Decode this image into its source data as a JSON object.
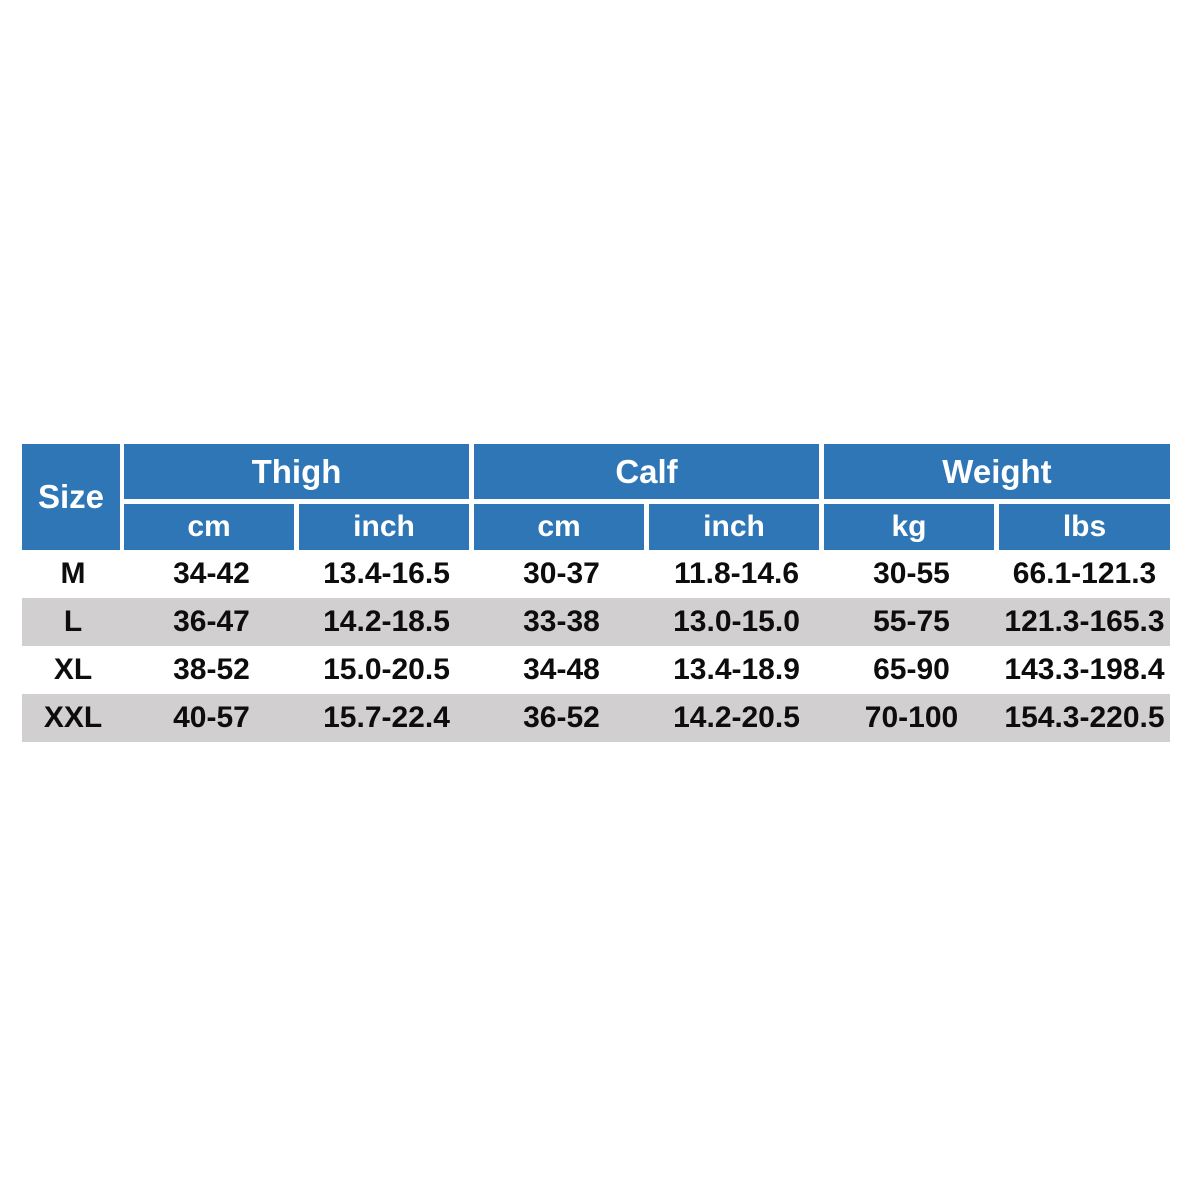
{
  "table": {
    "size_header": "Size",
    "groups": [
      {
        "label": "Thigh",
        "subs": [
          "cm",
          "inch"
        ]
      },
      {
        "label": "Calf",
        "subs": [
          "cm",
          "inch"
        ]
      },
      {
        "label": "Weight",
        "subs": [
          "kg",
          "lbs"
        ]
      }
    ],
    "sub_headers": [
      "cm",
      "inch",
      "cm",
      "inch",
      "kg",
      "lbs"
    ],
    "rows": [
      {
        "size": "M",
        "values": [
          "34-42",
          "13.4-16.5",
          "30-37",
          "11.8-14.6",
          "30-55",
          "66.1-121.3"
        ]
      },
      {
        "size": "L",
        "values": [
          "36-47",
          "14.2-18.5",
          "33-38",
          "13.0-15.0",
          "55-75",
          "121.3-165.3"
        ]
      },
      {
        "size": "XL",
        "values": [
          "38-52",
          "15.0-20.5",
          "34-48",
          "13.4-18.9",
          "65-90",
          "143.3-198.4"
        ]
      },
      {
        "size": "XXL",
        "values": [
          "40-57",
          "15.7-22.4",
          "36-52",
          "14.2-20.5",
          "70-100",
          "154.3-220.5"
        ]
      }
    ],
    "colors": {
      "header_bg": "#2e76b5",
      "header_text": "#ffffff",
      "row_alt_bg": "#d1cfcf",
      "row_bg": "#ffffff",
      "text": "#0d0d0d"
    }
  }
}
